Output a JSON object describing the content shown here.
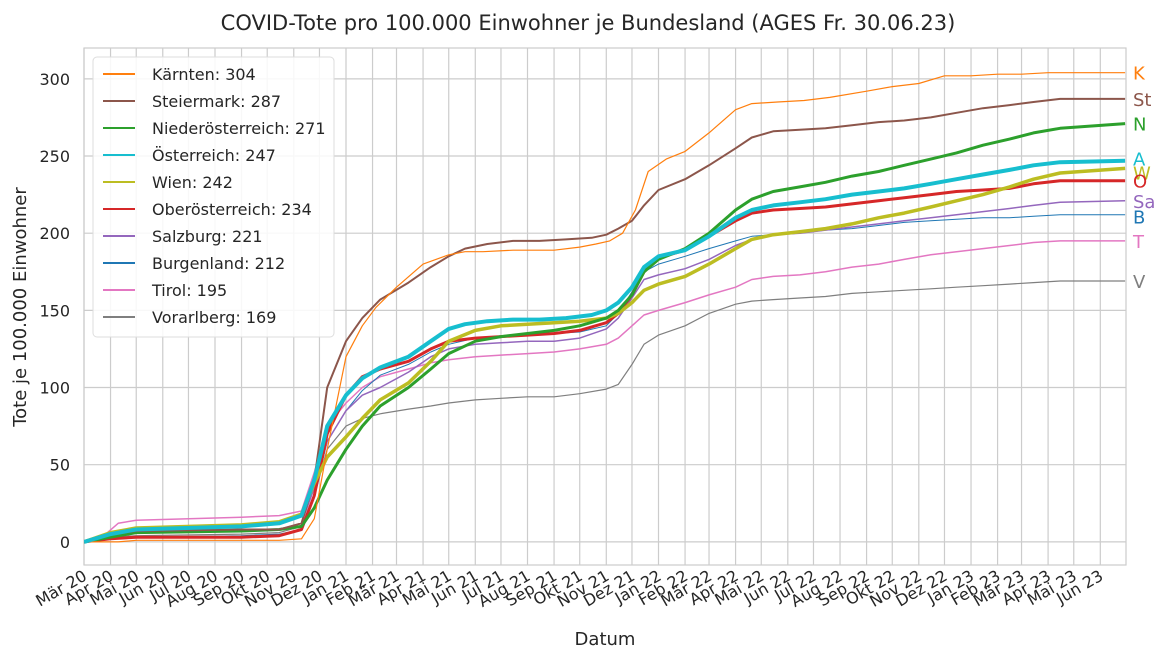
{
  "chart_data": {
    "type": "line",
    "title": "COVID-Tote pro 100.000 Einwohner je Bundesland (AGES Fr. 30.06.23)",
    "xlabel": "Datum",
    "ylabel": "Tote je 100.000 Einwohner",
    "ylim": [
      -15,
      320
    ],
    "yticks": [
      0,
      50,
      100,
      150,
      200,
      250,
      300
    ],
    "grid": true,
    "legend_position": "top-left",
    "x_tick_labels": [
      "Mär 20",
      "Apr 20",
      "Mai 20",
      "Jun 20",
      "Jul 20",
      "Aug 20",
      "Sep 20",
      "Okt 20",
      "Nov 20",
      "Dez 20",
      "Jan 21",
      "Feb 21",
      "Mär 21",
      "Apr 21",
      "Mai 21",
      "Jun 21",
      "Jul 21",
      "Aug 21",
      "Sep 21",
      "Okt 21",
      "Nov 21",
      "Dez 21",
      "Jan 22",
      "Feb 22",
      "Mär 22",
      "Apr 22",
      "Mai 22",
      "Jun 22",
      "Jul 22",
      "Aug 22",
      "Sep 22",
      "Okt 22",
      "Nov 22",
      "Dez 22",
      "Jan 23",
      "Feb 23",
      "Mär 23",
      "Apr 23",
      "Mai 23",
      "Jun 23"
    ],
    "x_months": [
      "2020-03",
      "2020-04",
      "2020-05",
      "2020-06",
      "2020-07",
      "2020-08",
      "2020-09",
      "2020-10",
      "2020-11",
      "2020-12",
      "2021-01",
      "2021-02",
      "2021-03",
      "2021-04",
      "2021-05",
      "2021-06",
      "2021-07",
      "2021-08",
      "2021-09",
      "2021-10",
      "2021-11",
      "2021-12",
      "2022-01",
      "2022-02",
      "2022-03",
      "2022-04",
      "2022-05",
      "2022-06",
      "2022-07",
      "2022-08",
      "2022-09",
      "2022-10",
      "2022-11",
      "2022-12",
      "2023-01",
      "2023-02",
      "2023-03",
      "2023-04",
      "2023-05",
      "2023-06"
    ],
    "xlim": [
      "2020-03-01",
      "2023-07-01"
    ],
    "series": [
      {
        "name": "Kärnten: 304",
        "end_label": "K",
        "color": "#ff7f0e",
        "width": 1.2,
        "x": [
          "2020-03-01",
          "2020-04-10",
          "2020-05-01",
          "2020-09-01",
          "2020-10-15",
          "2020-11-10",
          "2020-11-25",
          "2020-12-10",
          "2021-01-01",
          "2021-01-20",
          "2021-02-05",
          "2021-03-01",
          "2021-04-01",
          "2021-05-01",
          "2021-05-20",
          "2021-06-10",
          "2021-07-15",
          "2021-09-01",
          "2021-10-01",
          "2021-10-20",
          "2021-11-05",
          "2021-11-20",
          "2021-12-05",
          "2021-12-20",
          "2022-01-10",
          "2022-02-01",
          "2022-03-01",
          "2022-04-01",
          "2022-04-20",
          "2022-05-20",
          "2022-06-20",
          "2022-07-20",
          "2022-09-01",
          "2022-10-01",
          "2022-11-01",
          "2022-12-01",
          "2023-01-01",
          "2023-02-01",
          "2023-03-01",
          "2023-04-01",
          "2023-06-30"
        ],
        "y": [
          0,
          0,
          1,
          1,
          1,
          2,
          15,
          60,
          120,
          140,
          152,
          165,
          180,
          186,
          188,
          188,
          189,
          189,
          191,
          193,
          195,
          200,
          215,
          240,
          248,
          253,
          265,
          280,
          284,
          285,
          286,
          288,
          292,
          295,
          297,
          302,
          302,
          303,
          303,
          304,
          304
        ]
      },
      {
        "name": "Steiermark: 287",
        "end_label": "St",
        "color": "#8c564b",
        "width": 2.0,
        "x": [
          "2020-03-01",
          "2020-04-01",
          "2020-05-01",
          "2020-09-01",
          "2020-10-15",
          "2020-11-10",
          "2020-11-25",
          "2020-12-10",
          "2021-01-01",
          "2021-01-20",
          "2021-02-10",
          "2021-03-15",
          "2021-04-10",
          "2021-05-01",
          "2021-05-20",
          "2021-06-15",
          "2021-07-15",
          "2021-08-15",
          "2021-09-15",
          "2021-10-15",
          "2021-11-01",
          "2021-11-15",
          "2021-12-01",
          "2021-12-15",
          "2022-01-01",
          "2022-02-01",
          "2022-03-01",
          "2022-04-01",
          "2022-04-20",
          "2022-05-15",
          "2022-06-15",
          "2022-07-15",
          "2022-08-15",
          "2022-09-15",
          "2022-10-15",
          "2022-11-15",
          "2022-12-15",
          "2023-01-15",
          "2023-02-15",
          "2023-03-15",
          "2023-04-15",
          "2023-06-30"
        ],
        "y": [
          0,
          5,
          7,
          8,
          8,
          12,
          40,
          100,
          130,
          145,
          157,
          168,
          178,
          185,
          190,
          193,
          195,
          195,
          196,
          197,
          199,
          203,
          208,
          218,
          228,
          235,
          244,
          255,
          262,
          266,
          267,
          268,
          270,
          272,
          273,
          275,
          278,
          281,
          283,
          285,
          287,
          287
        ]
      },
      {
        "name": "Niederösterreich: 271",
        "end_label": "N",
        "color": "#2ca02c",
        "width": 3.0,
        "x": [
          "2020-03-01",
          "2020-04-01",
          "2020-05-01",
          "2020-09-01",
          "2020-10-15",
          "2020-11-10",
          "2020-11-25",
          "2020-12-10",
          "2021-01-01",
          "2021-01-20",
          "2021-02-10",
          "2021-03-15",
          "2021-04-10",
          "2021-05-01",
          "2021-06-01",
          "2021-07-01",
          "2021-08-01",
          "2021-09-01",
          "2021-10-01",
          "2021-11-01",
          "2021-11-15",
          "2021-12-01",
          "2021-12-15",
          "2022-01-01",
          "2022-02-01",
          "2022-03-01",
          "2022-04-01",
          "2022-04-20",
          "2022-05-15",
          "2022-06-15",
          "2022-07-15",
          "2022-08-15",
          "2022-09-15",
          "2022-10-15",
          "2022-11-15",
          "2022-12-15",
          "2023-01-15",
          "2023-02-15",
          "2023-03-15",
          "2023-04-15",
          "2023-06-30"
        ],
        "y": [
          0,
          3,
          6,
          7,
          8,
          10,
          22,
          40,
          60,
          75,
          88,
          100,
          112,
          122,
          130,
          133,
          135,
          137,
          140,
          145,
          150,
          160,
          175,
          183,
          190,
          200,
          215,
          222,
          227,
          230,
          233,
          237,
          240,
          244,
          248,
          252,
          257,
          261,
          265,
          268,
          271
        ]
      },
      {
        "name": "Österreich: 247",
        "end_label": "A",
        "color": "#17becf",
        "width": 4.0,
        "x": [
          "2020-03-01",
          "2020-04-01",
          "2020-05-01",
          "2020-09-01",
          "2020-10-15",
          "2020-11-10",
          "2020-11-25",
          "2020-12-10",
          "2021-01-01",
          "2021-01-20",
          "2021-02-10",
          "2021-03-15",
          "2021-04-10",
          "2021-05-01",
          "2021-05-20",
          "2021-06-15",
          "2021-07-15",
          "2021-08-15",
          "2021-09-15",
          "2021-10-15",
          "2021-11-01",
          "2021-11-15",
          "2021-12-01",
          "2021-12-15",
          "2022-01-01",
          "2022-02-01",
          "2022-03-01",
          "2022-04-01",
          "2022-04-20",
          "2022-05-15",
          "2022-06-15",
          "2022-07-15",
          "2022-08-15",
          "2022-09-15",
          "2022-10-15",
          "2022-11-15",
          "2022-12-15",
          "2023-01-15",
          "2023-02-15",
          "2023-03-15",
          "2023-04-15",
          "2023-06-30"
        ],
        "y": [
          0,
          5,
          8,
          10,
          12,
          17,
          40,
          75,
          95,
          106,
          113,
          120,
          130,
          138,
          141,
          143,
          144,
          144,
          145,
          147,
          150,
          155,
          165,
          178,
          185,
          189,
          198,
          210,
          215,
          218,
          220,
          222,
          225,
          227,
          229,
          232,
          235,
          238,
          241,
          244,
          246,
          247
        ]
      },
      {
        "name": "Wien: 242",
        "end_label": "W",
        "color": "#bcbd22",
        "width": 3.5,
        "x": [
          "2020-03-01",
          "2020-04-01",
          "2020-05-01",
          "2020-09-01",
          "2020-10-15",
          "2020-11-10",
          "2020-11-25",
          "2020-12-10",
          "2021-01-01",
          "2021-01-20",
          "2021-02-10",
          "2021-03-15",
          "2021-04-10",
          "2021-05-01",
          "2021-06-01",
          "2021-07-01",
          "2021-08-01",
          "2021-09-01",
          "2021-10-01",
          "2021-11-01",
          "2021-11-15",
          "2021-12-01",
          "2021-12-15",
          "2022-01-01",
          "2022-02-01",
          "2022-03-01",
          "2022-04-01",
          "2022-04-20",
          "2022-05-15",
          "2022-06-15",
          "2022-07-15",
          "2022-08-15",
          "2022-09-15",
          "2022-10-15",
          "2022-11-15",
          "2022-12-15",
          "2023-01-15",
          "2023-02-15",
          "2023-03-15",
          "2023-04-15",
          "2023-06-30"
        ],
        "y": [
          0,
          6,
          9,
          11,
          13,
          18,
          38,
          55,
          68,
          80,
          92,
          103,
          117,
          130,
          137,
          140,
          141,
          142,
          143,
          145,
          148,
          155,
          163,
          167,
          172,
          180,
          190,
          196,
          199,
          201,
          203,
          206,
          210,
          213,
          217,
          221,
          225,
          230,
          235,
          239,
          242
        ]
      },
      {
        "name": "Oberösterreich: 234",
        "end_label": "O",
        "color": "#d62728",
        "width": 3.0,
        "x": [
          "2020-03-01",
          "2020-04-01",
          "2020-05-01",
          "2020-09-01",
          "2020-10-15",
          "2020-11-10",
          "2020-11-25",
          "2020-12-10",
          "2021-01-01",
          "2021-01-20",
          "2021-02-10",
          "2021-03-15",
          "2021-04-10",
          "2021-05-01",
          "2021-06-01",
          "2021-07-01",
          "2021-08-01",
          "2021-09-01",
          "2021-10-01",
          "2021-11-01",
          "2021-11-15",
          "2021-12-01",
          "2021-12-15",
          "2022-01-01",
          "2022-02-01",
          "2022-03-01",
          "2022-04-01",
          "2022-04-20",
          "2022-05-15",
          "2022-06-15",
          "2022-07-15",
          "2022-08-15",
          "2022-09-15",
          "2022-10-15",
          "2022-11-15",
          "2022-12-15",
          "2023-01-15",
          "2023-02-15",
          "2023-03-15",
          "2023-04-15",
          "2023-06-30"
        ],
        "y": [
          0,
          2,
          3,
          3,
          4,
          8,
          30,
          70,
          95,
          107,
          112,
          117,
          125,
          130,
          132,
          133,
          134,
          135,
          137,
          142,
          148,
          160,
          175,
          184,
          189,
          198,
          208,
          213,
          215,
          216,
          217,
          219,
          221,
          223,
          225,
          227,
          228,
          229,
          232,
          234,
          234
        ]
      },
      {
        "name": "Salzburg: 221",
        "end_label": "Sa",
        "color": "#9467bd",
        "width": 1.5,
        "x": [
          "2020-03-01",
          "2020-04-01",
          "2020-05-01",
          "2020-09-01",
          "2020-10-15",
          "2020-11-10",
          "2020-11-25",
          "2020-12-10",
          "2021-01-01",
          "2021-01-20",
          "2021-02-10",
          "2021-03-15",
          "2021-04-10",
          "2021-05-01",
          "2021-06-01",
          "2021-07-01",
          "2021-08-01",
          "2021-09-01",
          "2021-10-01",
          "2021-11-01",
          "2021-11-15",
          "2021-12-01",
          "2021-12-15",
          "2022-01-01",
          "2022-02-01",
          "2022-03-01",
          "2022-04-01",
          "2022-04-20",
          "2022-05-15",
          "2022-06-15",
          "2022-07-15",
          "2022-08-15",
          "2022-09-15",
          "2022-10-15",
          "2022-11-15",
          "2022-12-15",
          "2023-01-15",
          "2023-02-15",
          "2023-03-15",
          "2023-04-15",
          "2023-06-30"
        ],
        "y": [
          0,
          4,
          6,
          7,
          8,
          12,
          35,
          65,
          85,
          95,
          100,
          110,
          120,
          125,
          128,
          129,
          130,
          130,
          132,
          138,
          145,
          158,
          170,
          173,
          177,
          183,
          192,
          196,
          199,
          200,
          202,
          204,
          206,
          208,
          210,
          212,
          214,
          216,
          218,
          220,
          221
        ]
      },
      {
        "name": "Burgenland: 212",
        "end_label": "B",
        "color": "#1f77b4",
        "width": 1.0,
        "x": [
          "2020-03-01",
          "2020-04-01",
          "2020-05-01",
          "2020-09-01",
          "2020-10-15",
          "2020-11-10",
          "2020-11-25",
          "2020-12-10",
          "2021-01-01",
          "2021-01-20",
          "2021-02-10",
          "2021-03-15",
          "2021-04-10",
          "2021-05-01",
          "2021-06-01",
          "2021-07-01",
          "2021-08-01",
          "2021-09-01",
          "2021-10-01",
          "2021-11-01",
          "2021-11-15",
          "2021-12-01",
          "2021-12-15",
          "2022-01-01",
          "2022-02-01",
          "2022-03-01",
          "2022-04-01",
          "2022-04-20",
          "2022-05-15",
          "2022-06-15",
          "2022-07-15",
          "2022-08-15",
          "2022-09-15",
          "2022-10-15",
          "2022-11-15",
          "2022-12-15",
          "2023-01-15",
          "2023-02-15",
          "2023-03-15",
          "2023-04-15",
          "2023-06-30"
        ],
        "y": [
          0,
          2,
          3,
          4,
          5,
          8,
          30,
          65,
          85,
          98,
          108,
          115,
          123,
          128,
          132,
          133,
          134,
          135,
          136,
          140,
          148,
          162,
          175,
          180,
          185,
          190,
          195,
          198,
          199,
          200,
          202,
          203,
          205,
          207,
          208,
          209,
          210,
          210,
          211,
          212,
          212
        ]
      },
      {
        "name": "Tirol: 195",
        "end_label": "T",
        "color": "#e377c2",
        "width": 1.5,
        "x": [
          "2020-03-01",
          "2020-03-20",
          "2020-04-10",
          "2020-05-01",
          "2020-09-01",
          "2020-10-15",
          "2020-11-10",
          "2020-11-25",
          "2020-12-10",
          "2021-01-01",
          "2021-01-20",
          "2021-02-10",
          "2021-03-15",
          "2021-04-10",
          "2021-05-01",
          "2021-06-01",
          "2021-07-01",
          "2021-08-01",
          "2021-09-01",
          "2021-10-01",
          "2021-11-01",
          "2021-11-15",
          "2021-12-01",
          "2021-12-15",
          "2022-01-01",
          "2022-02-01",
          "2022-03-01",
          "2022-04-01",
          "2022-04-20",
          "2022-05-15",
          "2022-06-15",
          "2022-07-15",
          "2022-08-15",
          "2022-09-15",
          "2022-10-15",
          "2022-11-15",
          "2022-12-15",
          "2023-01-15",
          "2023-02-15",
          "2023-03-15",
          "2023-04-15",
          "2023-06-30"
        ],
        "y": [
          0,
          2,
          12,
          14,
          16,
          17,
          20,
          45,
          75,
          90,
          100,
          107,
          112,
          116,
          118,
          120,
          121,
          122,
          123,
          125,
          128,
          132,
          140,
          147,
          150,
          155,
          160,
          165,
          170,
          172,
          173,
          175,
          178,
          180,
          183,
          186,
          188,
          190,
          192,
          194,
          195,
          195
        ]
      },
      {
        "name": "Vorarlberg: 169",
        "end_label": "V",
        "color": "#7f7f7f",
        "width": 1.2,
        "x": [
          "2020-03-01",
          "2020-04-01",
          "2020-05-01",
          "2020-09-01",
          "2020-10-15",
          "2020-11-10",
          "2020-11-25",
          "2020-12-10",
          "2021-01-01",
          "2021-01-20",
          "2021-02-10",
          "2021-03-15",
          "2021-04-10",
          "2021-05-01",
          "2021-06-01",
          "2021-07-01",
          "2021-08-01",
          "2021-09-01",
          "2021-10-01",
          "2021-11-01",
          "2021-11-15",
          "2021-12-01",
          "2021-12-15",
          "2022-01-01",
          "2022-02-01",
          "2022-03-01",
          "2022-04-01",
          "2022-04-20",
          "2022-05-15",
          "2022-06-15",
          "2022-07-15",
          "2022-08-15",
          "2022-09-15",
          "2022-10-15",
          "2022-11-15",
          "2022-12-15",
          "2023-01-15",
          "2023-02-15",
          "2023-03-15",
          "2023-04-15",
          "2023-06-30"
        ],
        "y": [
          0,
          3,
          4,
          5,
          6,
          10,
          30,
          60,
          75,
          80,
          83,
          86,
          88,
          90,
          92,
          93,
          94,
          94,
          96,
          99,
          102,
          115,
          128,
          134,
          140,
          148,
          154,
          156,
          157,
          158,
          159,
          161,
          162,
          163,
          164,
          165,
          166,
          167,
          168,
          169,
          169
        ]
      }
    ]
  }
}
